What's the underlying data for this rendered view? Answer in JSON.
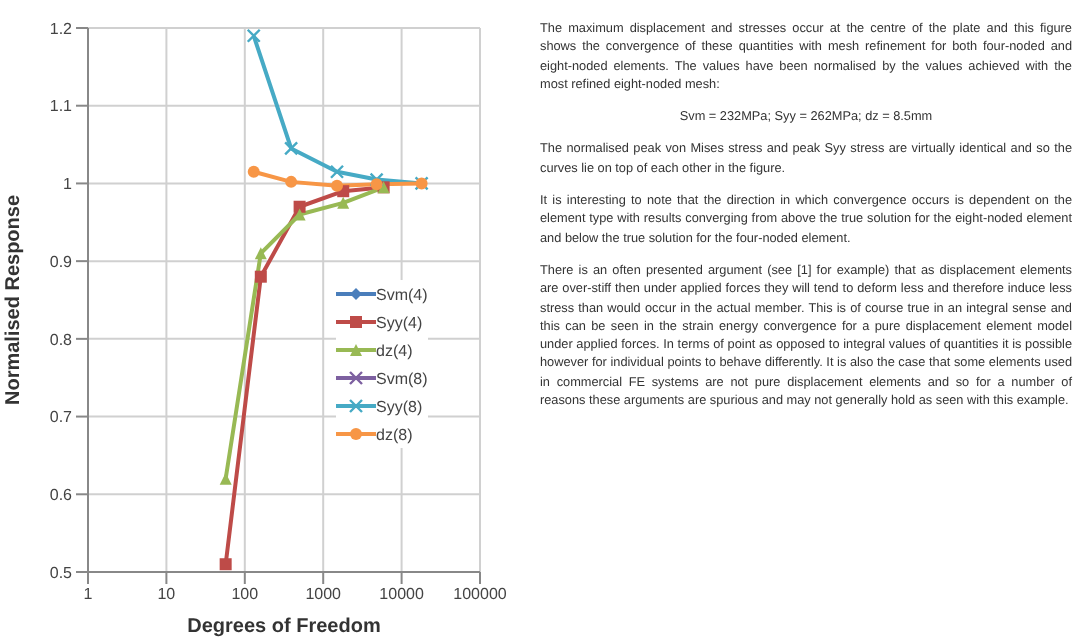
{
  "chart_data": {
    "type": "line",
    "xlabel": "Degrees of Freedom",
    "ylabel": "Normalised Response",
    "log": "x",
    "xlim": [
      1,
      100000
    ],
    "xticks": [
      1,
      10,
      100,
      1000,
      10000,
      100000
    ],
    "ylim": [
      0.5,
      1.2
    ],
    "yticks": [
      0.5,
      0.6,
      0.7,
      0.8,
      0.9,
      1,
      1.1,
      1.2
    ],
    "grid": true,
    "legend": "right",
    "series": [
      {
        "name": "Svm(4)",
        "color": "#4a7ebb",
        "marker": "diamond"
      },
      {
        "name": "Syy(4)",
        "color": "#be4b48",
        "marker": "square",
        "x": [
          57,
          160,
          500,
          1800,
          5900
        ],
        "values": [
          0.51,
          0.88,
          0.97,
          0.99,
          0.995
        ]
      },
      {
        "name": "dz(4)",
        "color": "#98b954",
        "marker": "triangle",
        "x": [
          57,
          160,
          500,
          1800,
          5900
        ],
        "values": [
          0.62,
          0.91,
          0.96,
          0.975,
          0.995
        ]
      },
      {
        "name": "Svm(8)",
        "color": "#7d60a0",
        "marker": "cross"
      },
      {
        "name": "Syy(8)",
        "color": "#46aac5",
        "marker": "cross",
        "x": [
          130,
          390,
          1500,
          4800,
          18000
        ],
        "values": [
          1.19,
          1.045,
          1.015,
          1.005,
          1.0
        ]
      },
      {
        "name": "dz(8)",
        "color": "#f79646",
        "marker": "circle",
        "x": [
          130,
          390,
          1500,
          4800,
          18000
        ],
        "values": [
          1.015,
          1.002,
          0.997,
          0.999,
          1.0
        ]
      }
    ],
    "annotations": [
      "The maximum displacement and stresses occur at the centre of the plate and this figure shows the convergence of these quantities with mesh refinement for both four-noded and eight-noded elements.  The values have been normalised by the values achieved with the most refined eight-noded mesh:",
      "Svm = 232MPa; Syy = 262MPa; dz = 8.5mm",
      "The normalised peak von Mises stress and peak Syy stress are virtually identical and so the curves lie on top of each other in the figure.",
      "It is interesting to note that the direction in which convergence occurs is dependent on the element type with results converging from above the true solution for the eight-noded element and below the true solution for the four-noded element.",
      "There is an often presented argument (see [1] for example) that as displacement elements are over-stiff then under applied forces they will tend to deform less and therefore induce less stress than would occur in the actual member.  This is of course true in an integral sense and this can be seen in the strain energy convergence for a pure displacement element model under applied forces.  In terms of point as opposed to integral values of quantities it is possible however for individual points to behave differently.  It is also the case that some elements used in commercial FE systems are not pure displacement elements and so for a number of reasons these arguments are spurious and may not generally hold as seen with this example."
    ]
  }
}
